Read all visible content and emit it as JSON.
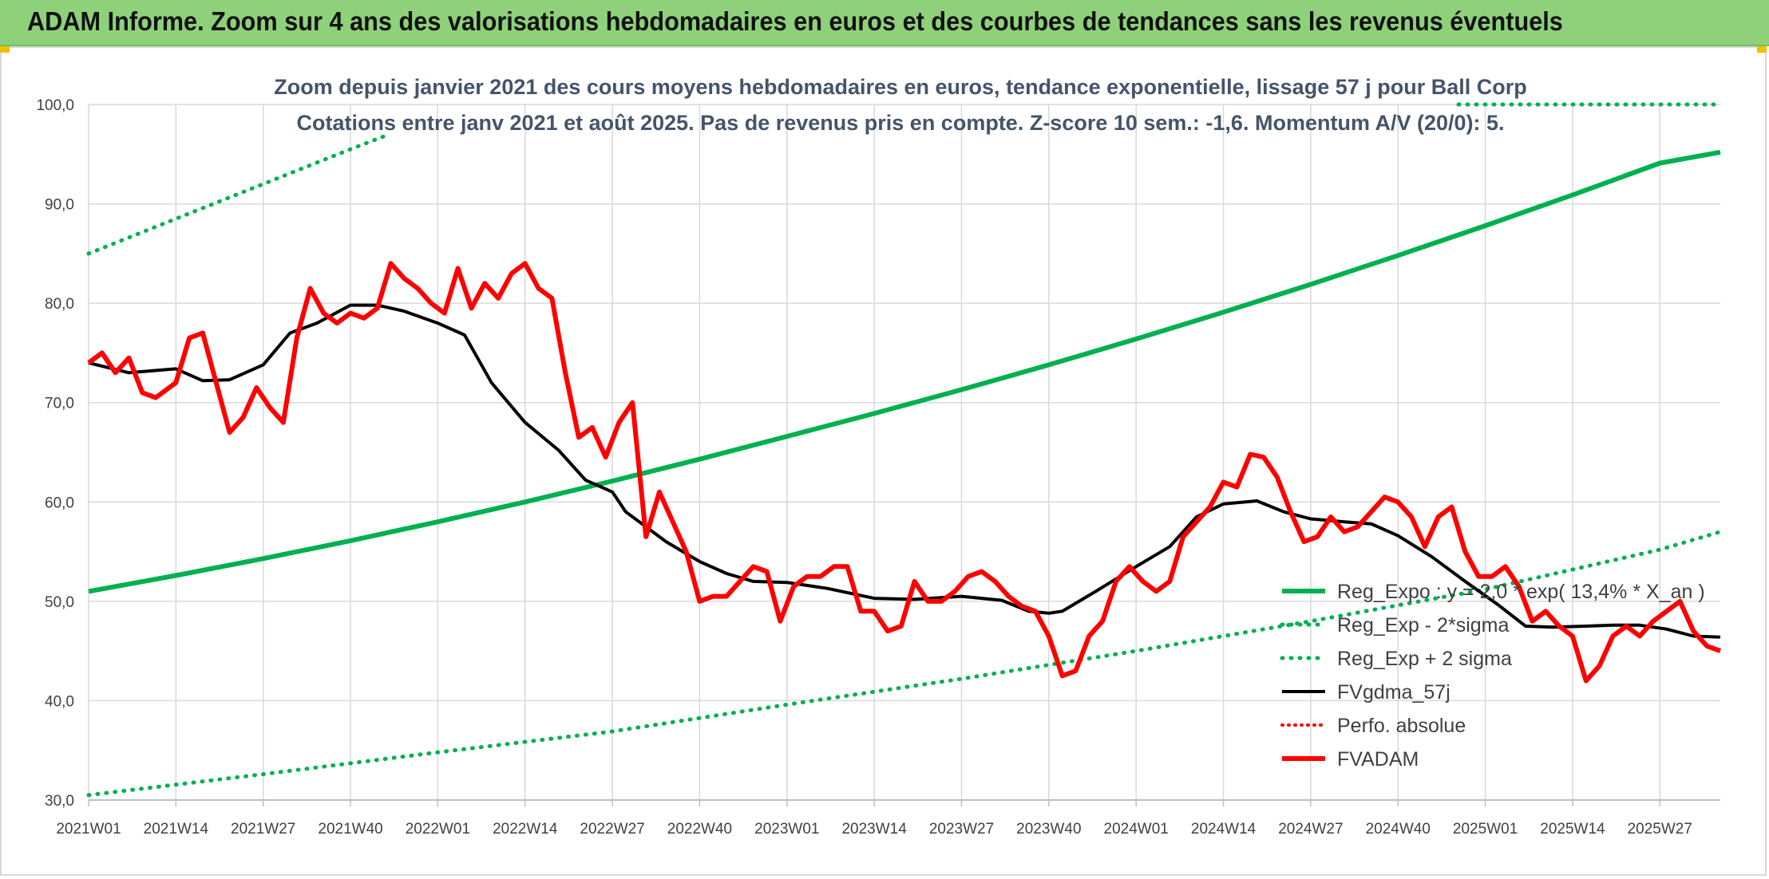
{
  "banner_title": "ADAM Informe. Zoom sur 4 ans des valorisations hebdomadaires en euros et des courbes de tendances sans les revenus éventuels",
  "colors": {
    "trend": "#00b050",
    "fvgdma": "#000000",
    "fvadam": "#ff0000",
    "perfo": "#ff0000",
    "banner": "#8fd17a",
    "grid": "#d9d9d9"
  },
  "chart_data": {
    "type": "line",
    "title_line1": "Zoom depuis janvier 2021 des cours moyens hebdomadaires en euros, tendance exponentielle, lissage 57 j pour Ball Corp",
    "title_line2": "Cotations entre janv 2021 et août 2025. Pas de revenus pris en compte. Z-score 10 sem.: -1,6. Momentum A/V (20/0): 5.",
    "ylim": [
      30,
      100
    ],
    "y_ticks": [
      "30,0",
      "40,0",
      "50,0",
      "60,0",
      "70,0",
      "80,0",
      "90,0",
      "100,0"
    ],
    "x_ticks": [
      "2021W01",
      "2021W14",
      "2021W27",
      "2021W40",
      "2022W01",
      "2022W14",
      "2022W27",
      "2022W40",
      "2023W01",
      "2023W14",
      "2023W27",
      "2023W40",
      "2024W01",
      "2024W14",
      "2024W27",
      "2024W40",
      "2025W01",
      "2025W14",
      "2025W27"
    ],
    "grid": true,
    "legend_position": "bottom-right",
    "legend": [
      {
        "key": "trend",
        "label": "Reg_Expo : y = 2,0 * exp( 13,4% *  X_an )"
      },
      {
        "key": "lower",
        "label": "Reg_Exp - 2*sigma"
      },
      {
        "key": "upper",
        "label": "Reg_Exp + 2 sigma"
      },
      {
        "key": "fvgdma",
        "label": "FVgdma_57j"
      },
      {
        "key": "perfo",
        "label": "Perfo. absolue"
      },
      {
        "key": "fvadam",
        "label": "FVADAM"
      }
    ],
    "series": [
      {
        "name": "Reg_Expo : y = 2,0 * exp( 13,4% *  X_an )",
        "style": "solid-thick-green",
        "week_index": [
          0,
          13,
          26,
          39,
          52,
          65,
          78,
          91,
          104,
          117,
          130,
          143,
          156,
          169,
          182,
          195,
          208,
          221,
          234,
          243
        ],
        "values": [
          51.0,
          52.6,
          54.3,
          56.1,
          58.0,
          60.0,
          62.1,
          64.3,
          66.6,
          68.9,
          71.3,
          73.8,
          76.4,
          79.1,
          81.9,
          84.8,
          87.8,
          90.9,
          94.1,
          95.2
        ]
      },
      {
        "name": "Reg_Exp - 2*sigma",
        "style": "dotted-green",
        "week_index": [
          0,
          26,
          52,
          78,
          104,
          130,
          156,
          182,
          208,
          234,
          243
        ],
        "values": [
          30.5,
          32.6,
          34.8,
          36.9,
          39.6,
          42.2,
          45.0,
          48.0,
          51.2,
          55.2,
          57.0
        ]
      },
      {
        "name": "Reg_Exp + 2 sigma",
        "style": "dotted-green",
        "week_index": [
          0,
          13,
          26,
          39,
          44
        ],
        "values": [
          85.0,
          88.5,
          92.0,
          95.5,
          96.8
        ]
      },
      {
        "name": "Reg_Exp + 2 sigma (upper segment)",
        "style": "dotted-green",
        "week_index": [
          204,
          243
        ],
        "values": [
          100.0,
          100.0
        ]
      },
      {
        "name": "FVgdma_57j",
        "style": "solid-black",
        "week_index": [
          0,
          6,
          13,
          17,
          21,
          26,
          30,
          34,
          39,
          43,
          47,
          52,
          56,
          60,
          65,
          70,
          74,
          78,
          80,
          86,
          91,
          95,
          99,
          104,
          110,
          117,
          123,
          130,
          136,
          140,
          143,
          145,
          150,
          156,
          161,
          165,
          169,
          174,
          178,
          182,
          187,
          191,
          195,
          200,
          205,
          210,
          214,
          218,
          223,
          227,
          231,
          235,
          239,
          243
        ],
        "values": [
          74.0,
          73.0,
          73.4,
          72.2,
          72.3,
          73.8,
          77.0,
          78.0,
          79.8,
          79.8,
          79.2,
          78.0,
          76.8,
          72.0,
          68.0,
          65.2,
          62.2,
          61.0,
          59.0,
          56.0,
          54.0,
          52.8,
          52.0,
          51.9,
          51.3,
          50.3,
          50.2,
          50.5,
          50.1,
          49.0,
          48.8,
          49.0,
          51.0,
          53.5,
          55.5,
          58.5,
          59.8,
          60.1,
          59.0,
          58.3,
          58.0,
          57.8,
          56.6,
          54.5,
          52.0,
          49.6,
          47.5,
          47.4,
          47.5,
          47.6,
          47.6,
          47.2,
          46.5,
          46.4
        ]
      },
      {
        "name": "FVADAM",
        "style": "solid-thick-red",
        "week_index": [
          0,
          2,
          4,
          6,
          8,
          10,
          13,
          15,
          17,
          19,
          21,
          23,
          25,
          27,
          29,
          31,
          33,
          35,
          37,
          39,
          41,
          43,
          45,
          47,
          49,
          51,
          53,
          55,
          57,
          59,
          61,
          63,
          65,
          67,
          69,
          71,
          73,
          75,
          77,
          79,
          81,
          83,
          85,
          87,
          89,
          91,
          93,
          95,
          97,
          99,
          101,
          103,
          105,
          107,
          109,
          111,
          113,
          115,
          117,
          119,
          121,
          123,
          125,
          127,
          129,
          131,
          133,
          135,
          137,
          139,
          141,
          143,
          145,
          147,
          149,
          151,
          153,
          155,
          157,
          159,
          161,
          163,
          165,
          167,
          169,
          171,
          173,
          175,
          177,
          179,
          181,
          183,
          185,
          187,
          189,
          191,
          193,
          195,
          197,
          199,
          201,
          203,
          205,
          207,
          209,
          211,
          213,
          215,
          217,
          219,
          221,
          223,
          225,
          227,
          229,
          231,
          233,
          235,
          237,
          239,
          241,
          243
        ],
        "values": [
          74.0,
          75.0,
          73.0,
          74.5,
          71.0,
          70.5,
          72.0,
          76.5,
          77.0,
          72.0,
          67.0,
          68.5,
          71.5,
          69.5,
          68.0,
          76.5,
          81.5,
          79.0,
          78.0,
          79.0,
          78.5,
          79.5,
          84.0,
          82.5,
          81.5,
          80.0,
          79.0,
          83.5,
          79.5,
          82.0,
          80.5,
          83.0,
          84.0,
          81.5,
          80.5,
          73.0,
          66.5,
          67.5,
          64.5,
          68.0,
          70.0,
          56.5,
          61.0,
          58.0,
          55.0,
          50.0,
          50.5,
          50.5,
          52.0,
          53.5,
          53.0,
          48.0,
          51.5,
          52.5,
          52.5,
          53.5,
          53.5,
          49.0,
          49.0,
          47.0,
          47.5,
          52.0,
          50.0,
          50.0,
          51.0,
          52.5,
          53.0,
          52.0,
          50.5,
          49.5,
          49.0,
          46.5,
          42.5,
          43.0,
          46.5,
          48.0,
          52.0,
          53.5,
          52.0,
          51.0,
          52.0,
          56.5,
          58.0,
          59.5,
          62.0,
          61.5,
          64.8,
          64.5,
          62.5,
          59.0,
          56.0,
          56.5,
          58.5,
          57.0,
          57.5,
          59.0,
          60.5,
          60.0,
          58.5,
          55.5,
          58.5,
          59.5,
          55.0,
          52.5,
          52.5,
          53.5,
          51.5,
          48.0,
          49.0,
          47.5,
          46.5,
          42.0,
          43.5,
          46.5,
          47.5,
          46.5,
          48.0,
          49.0,
          50.0,
          47.0,
          45.5,
          45.0
        ]
      }
    ]
  }
}
